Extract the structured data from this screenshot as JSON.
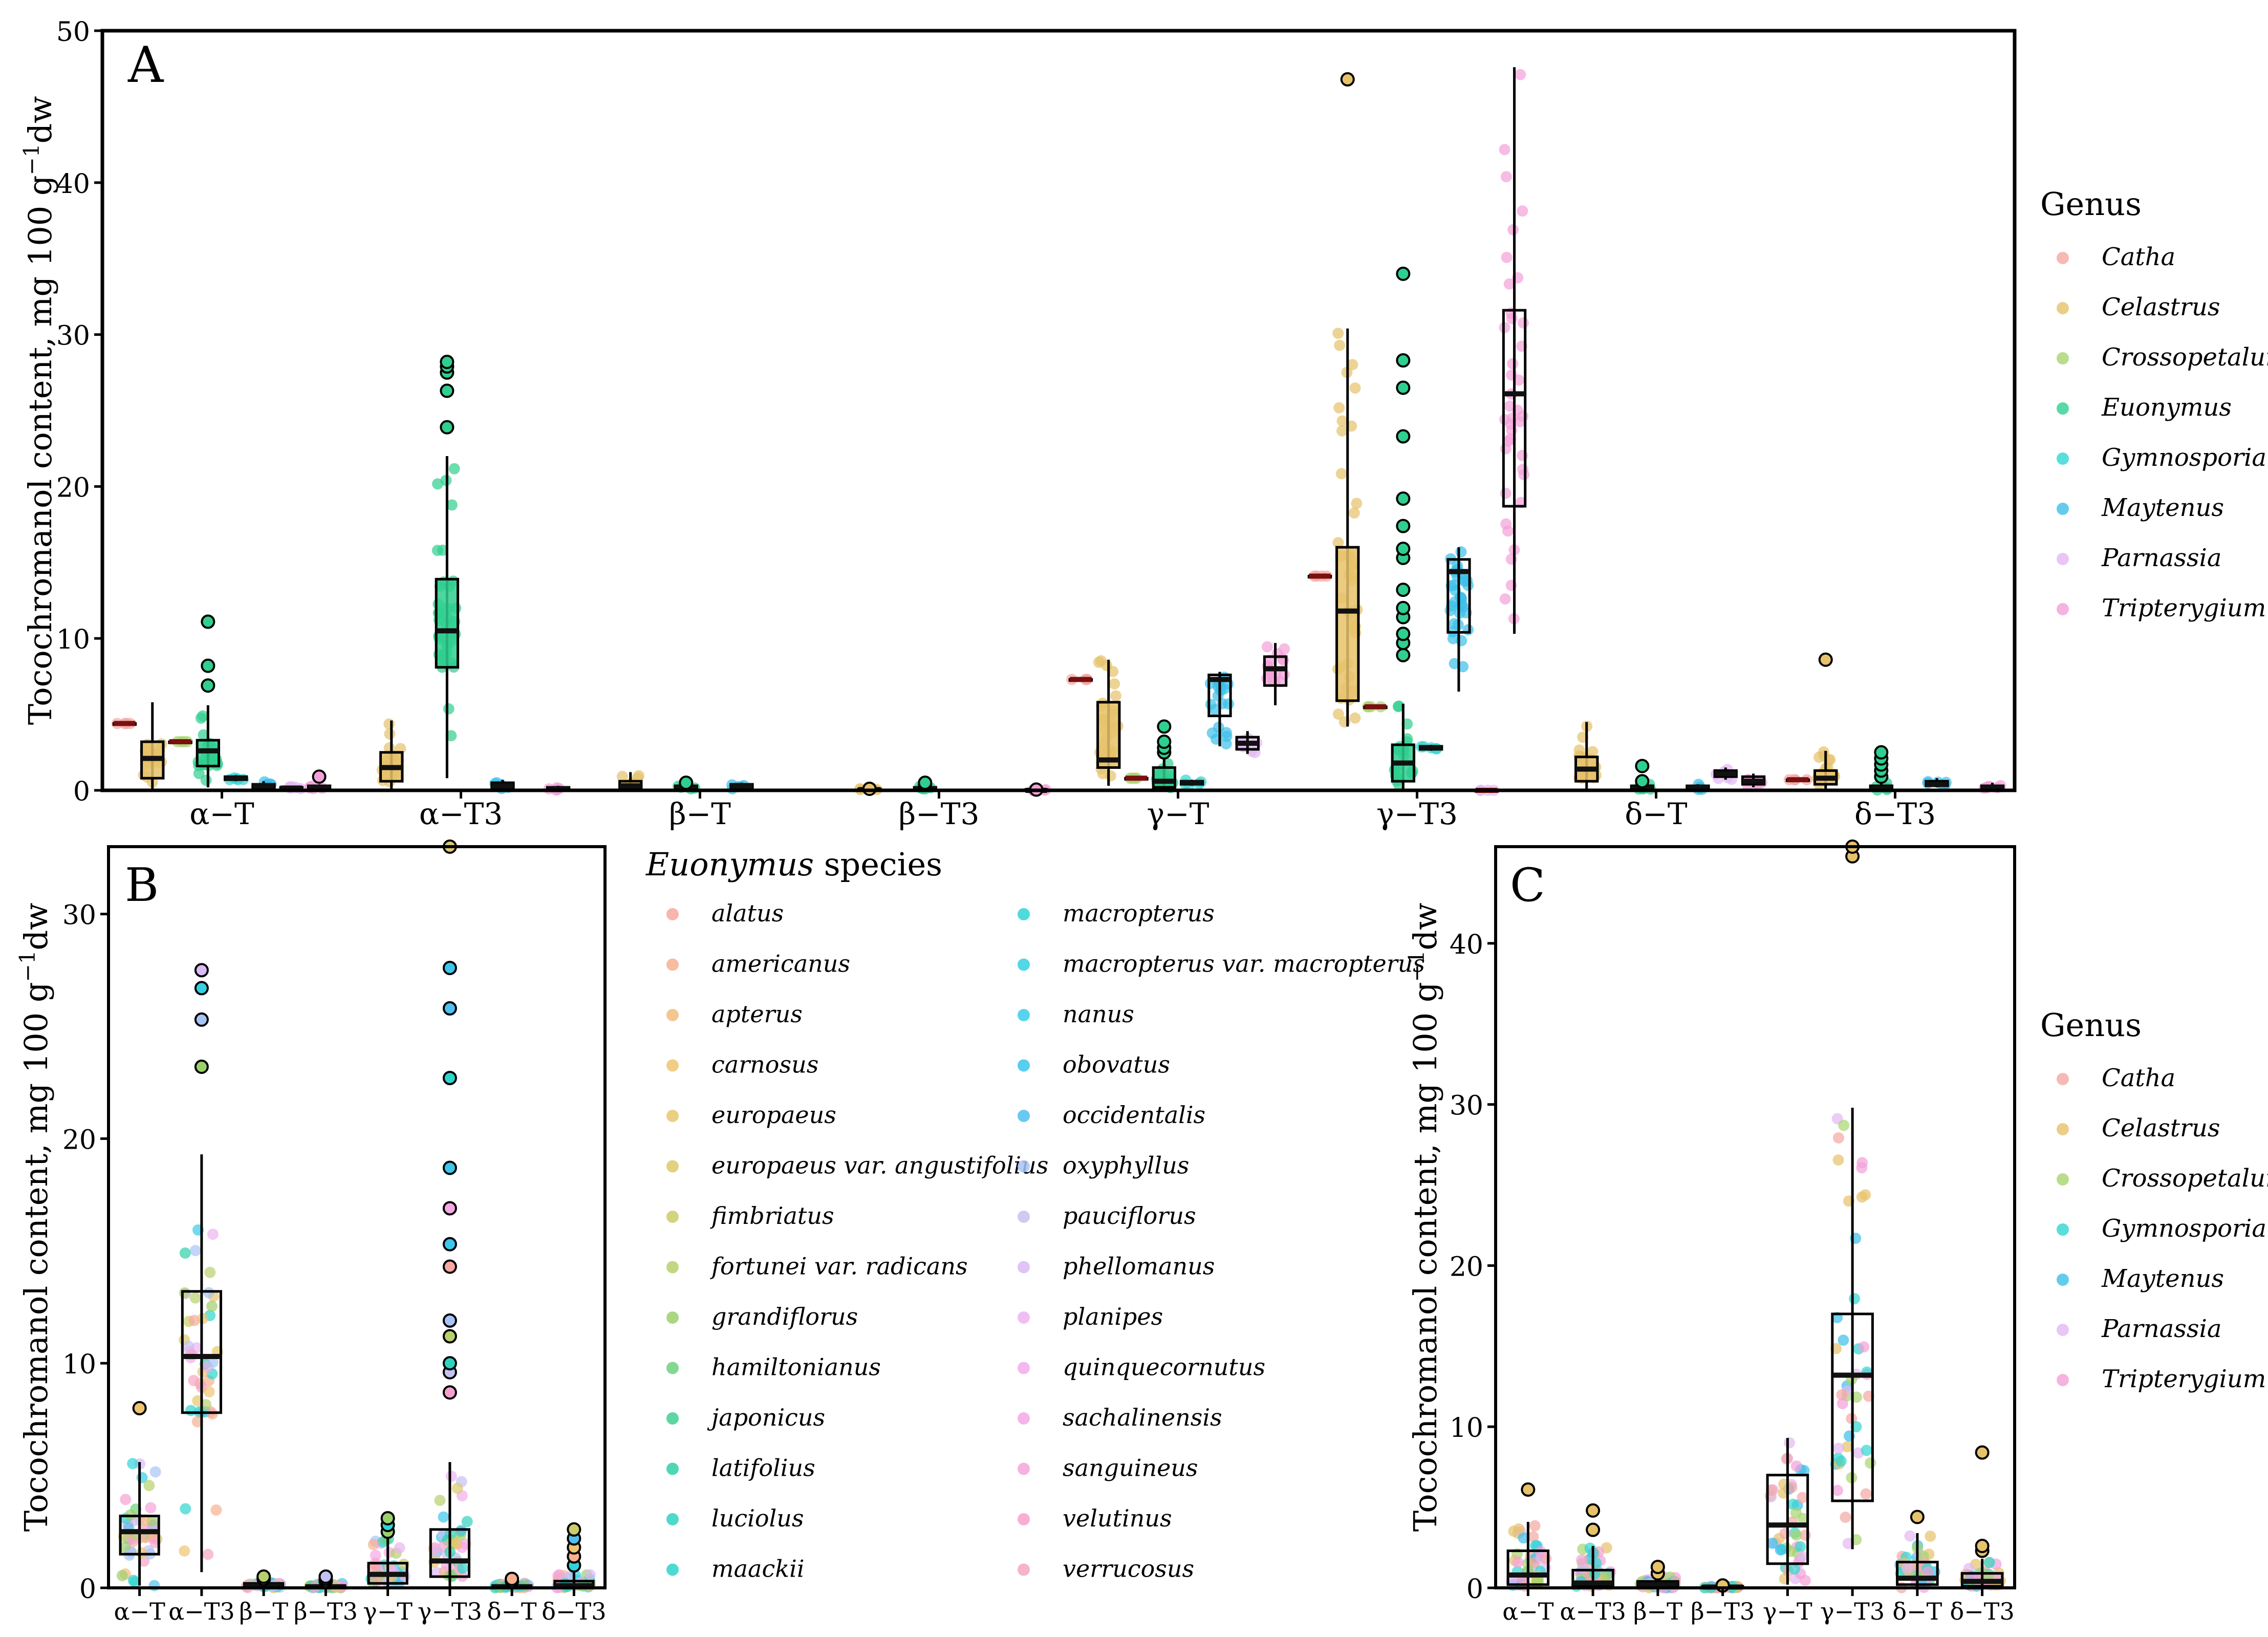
{
  "figure": {
    "panel_labels": [
      "A",
      "B",
      "C"
    ],
    "y_axis_label": "Tocochromanol content, mg 100 g",
    "y_axis_label_sup": "−1",
    "y_axis_label_suffix": "dw"
  },
  "colors": {
    "Catha": "#f4a7a3",
    "Celastrus": "#e6c26a",
    "Crossopetalum": "#a8d46f",
    "Euonymus": "#2fcf8f",
    "Gymnosporia": "#30d6d2",
    "Maytenus": "#3cbfe8",
    "Parnassia": "#e2b8f2",
    "Tripterygium": "#f4a0d8"
  },
  "legend_genus_A": {
    "title": "Genus",
    "items": [
      "Catha",
      "Celastrus",
      "Crossopetalum",
      "Euonymus",
      "Gymnosporia",
      "Maytenus",
      "Parnassia",
      "Tripterygium"
    ]
  },
  "legend_genus_C": {
    "title": "Genus",
    "items": [
      "Catha",
      "Celastrus",
      "Crossopetalum",
      "Gymnosporia",
      "Maytenus",
      "Parnassia",
      "Tripterygium"
    ]
  },
  "legend_species": {
    "title_italic": "Euonymus",
    "title_rest": " species",
    "col1": [
      "alatus",
      "americanus",
      "apterus",
      "carnosus",
      "europaeus",
      "europaeus var. angustifolius",
      "fimbriatus",
      "fortunei var. radicans",
      "grandiflorus",
      "hamiltonianus",
      "japonicus",
      "latifolius",
      "luciolus",
      "maackii"
    ],
    "col2": [
      "macropterus",
      "macropterus var. macropterus",
      "nanus",
      "obovatus",
      "occidentalis",
      "oxyphyllus",
      "pauciflorus",
      "phellomanus",
      "planipes",
      "quinquecornutus",
      "sachalinensis",
      "sanguineus",
      "velutinus",
      "verrucosus"
    ],
    "col1_colors": [
      "#f7a8a0",
      "#f7b090",
      "#f2bc7c",
      "#eec470",
      "#e6c86a",
      "#dcca6c",
      "#cccc6a",
      "#b8d06c",
      "#9cd06c",
      "#6ed07c",
      "#3fcf92",
      "#2fd0a8",
      "#2ed3bf",
      "#2fd4cc"
    ],
    "col2_colors": [
      "#30d4d8",
      "#34d0e2",
      "#38cce8",
      "#3cc6ec",
      "#50c0ee",
      "#a8c4f4",
      "#c4c2f2",
      "#dcbaf4",
      "#ecb4f2",
      "#f2acec",
      "#f4a8e4",
      "#f6a4da",
      "#f6a0d0",
      "#f7a4c4"
    ]
  },
  "chart_data": [
    {
      "panel": "A",
      "type": "box",
      "title": "",
      "xlabel": "",
      "ylabel": "Tocochromanol content, mg 100 g−1dw",
      "ylim": [
        0,
        50
      ],
      "yticks": [
        0,
        10,
        20,
        30,
        40,
        50
      ],
      "categories": [
        "α−T",
        "α−T3",
        "β−T",
        "β−T3",
        "γ−T",
        "γ−T3",
        "δ−T",
        "δ−T3"
      ],
      "groups": [
        {
          "category": "α−T",
          "genus": "Catha",
          "q1": 4.4,
          "median": 4.4,
          "q3": 4.4,
          "wlo": 4.4,
          "whi": 4.4,
          "outliers": []
        },
        {
          "category": "α−T",
          "genus": "Celastrus",
          "q1": 0.8,
          "median": 2.1,
          "q3": 3.2,
          "wlo": 0.1,
          "whi": 5.8,
          "outliers": []
        },
        {
          "category": "α−T",
          "genus": "Crossopetalum",
          "q1": 3.2,
          "median": 3.2,
          "q3": 3.2,
          "wlo": 3.2,
          "whi": 3.2,
          "outliers": []
        },
        {
          "category": "α−T",
          "genus": "Euonymus",
          "q1": 1.6,
          "median": 2.6,
          "q3": 3.3,
          "wlo": 0.2,
          "whi": 5.6,
          "outliers": [
            6.9,
            8.2,
            11.1
          ]
        },
        {
          "category": "α−T",
          "genus": "Gymnosporia",
          "q1": 0.7,
          "median": 0.8,
          "q3": 0.9,
          "wlo": 0.6,
          "whi": 1.0,
          "outliers": []
        },
        {
          "category": "α−T",
          "genus": "Maytenus",
          "q1": 0.2,
          "median": 0.3,
          "q3": 0.4,
          "wlo": 0.1,
          "whi": 0.6,
          "outliers": []
        },
        {
          "category": "α−T",
          "genus": "Parnassia",
          "q1": 0.1,
          "median": 0.15,
          "q3": 0.2,
          "wlo": 0.05,
          "whi": 0.3,
          "outliers": []
        },
        {
          "category": "α−T",
          "genus": "Tripterygium",
          "q1": 0.1,
          "median": 0.2,
          "q3": 0.3,
          "wlo": 0.05,
          "whi": 0.4,
          "outliers": [
            0.9
          ]
        },
        {
          "category": "α−T3",
          "genus": "Celastrus",
          "q1": 0.6,
          "median": 1.5,
          "q3": 2.5,
          "wlo": 0.1,
          "whi": 4.6,
          "outliers": []
        },
        {
          "category": "α−T3",
          "genus": "Euonymus",
          "q1": 8.1,
          "median": 10.5,
          "q3": 13.9,
          "wlo": 0.8,
          "whi": 22.0,
          "outliers": [
            23.9,
            26.3,
            27.5,
            27.9,
            28.2
          ]
        },
        {
          "category": "α−T3",
          "genus": "Maytenus",
          "q1": 0.1,
          "median": 0.3,
          "q3": 0.5,
          "wlo": 0.05,
          "whi": 0.7,
          "outliers": []
        },
        {
          "category": "α−T3",
          "genus": "Tripterygium",
          "q1": 0.05,
          "median": 0.1,
          "q3": 0.2,
          "wlo": 0.0,
          "whi": 0.3,
          "outliers": []
        },
        {
          "category": "β−T",
          "genus": "Celastrus",
          "q1": 0.1,
          "median": 0.3,
          "q3": 0.6,
          "wlo": 0.0,
          "whi": 1.2,
          "outliers": []
        },
        {
          "category": "β−T",
          "genus": "Euonymus",
          "q1": 0.1,
          "median": 0.2,
          "q3": 0.3,
          "wlo": 0.0,
          "whi": 0.5,
          "outliers": [
            0.5
          ]
        },
        {
          "category": "β−T",
          "genus": "Maytenus",
          "q1": 0.2,
          "median": 0.3,
          "q3": 0.4,
          "wlo": 0.1,
          "whi": 0.5,
          "outliers": []
        },
        {
          "category": "β−T3",
          "genus": "Celastrus",
          "q1": 0.0,
          "median": 0.05,
          "q3": 0.1,
          "wlo": 0.0,
          "whi": 0.15,
          "outliers": [
            0.1
          ]
        },
        {
          "category": "β−T3",
          "genus": "Euonymus",
          "q1": 0.05,
          "median": 0.1,
          "q3": 0.2,
          "wlo": 0.0,
          "whi": 0.3,
          "outliers": [
            0.4,
            0.5
          ]
        },
        {
          "category": "β−T3",
          "genus": "Tripterygium",
          "q1": 0.0,
          "median": 0.0,
          "q3": 0.05,
          "wlo": 0.0,
          "whi": 0.05,
          "outliers": [
            0.05
          ]
        },
        {
          "category": "γ−T",
          "genus": "Catha",
          "q1": 7.3,
          "median": 7.3,
          "q3": 7.3,
          "wlo": 7.3,
          "whi": 7.3,
          "outliers": []
        },
        {
          "category": "γ−T",
          "genus": "Celastrus",
          "q1": 1.5,
          "median": 2.0,
          "q3": 5.8,
          "wlo": 0.3,
          "whi": 8.6,
          "outliers": []
        },
        {
          "category": "γ−T",
          "genus": "Crossopetalum",
          "q1": 0.8,
          "median": 0.8,
          "q3": 0.8,
          "wlo": 0.8,
          "whi": 0.8,
          "outliers": []
        },
        {
          "category": "γ−T",
          "genus": "Euonymus",
          "q1": 0.2,
          "median": 0.6,
          "q3": 1.5,
          "wlo": 0.0,
          "whi": 2.2,
          "outliers": [
            2.5,
            2.8,
            3.2,
            4.2
          ]
        },
        {
          "category": "γ−T",
          "genus": "Gymnosporia",
          "q1": 0.4,
          "median": 0.5,
          "q3": 0.6,
          "wlo": 0.3,
          "whi": 0.7,
          "outliers": []
        },
        {
          "category": "γ−T",
          "genus": "Maytenus",
          "q1": 4.9,
          "median": 7.3,
          "q3": 7.6,
          "wlo": 2.9,
          "whi": 7.8,
          "outliers": []
        },
        {
          "category": "γ−T",
          "genus": "Parnassia",
          "q1": 2.7,
          "median": 3.1,
          "q3": 3.5,
          "wlo": 2.4,
          "whi": 3.9,
          "outliers": []
        },
        {
          "category": "γ−T",
          "genus": "Tripterygium",
          "q1": 6.9,
          "median": 8.0,
          "q3": 8.8,
          "wlo": 5.6,
          "whi": 9.7,
          "outliers": []
        },
        {
          "category": "γ−T3",
          "genus": "Catha",
          "q1": 14.1,
          "median": 14.1,
          "q3": 14.1,
          "wlo": 14.1,
          "whi": 14.1,
          "outliers": []
        },
        {
          "category": "γ−T3",
          "genus": "Celastrus",
          "q1": 5.9,
          "median": 11.8,
          "q3": 16.0,
          "wlo": 4.2,
          "whi": 30.4,
          "outliers": [
            46.8
          ]
        },
        {
          "category": "γ−T3",
          "genus": "Crossopetalum",
          "q1": 5.5,
          "median": 5.5,
          "q3": 5.5,
          "wlo": 5.5,
          "whi": 5.5,
          "outliers": []
        },
        {
          "category": "γ−T3",
          "genus": "Euonymus",
          "q1": 0.6,
          "median": 1.8,
          "q3": 3.0,
          "wlo": 0.0,
          "whi": 5.7,
          "outliers": [
            8.9,
            9.7,
            10.3,
            11.4,
            12.0,
            13.2,
            15.3,
            15.9,
            17.4,
            19.2,
            23.3,
            26.5,
            28.3,
            34.0
          ]
        },
        {
          "category": "γ−T3",
          "genus": "Gymnosporia",
          "q1": 2.7,
          "median": 2.8,
          "q3": 2.9,
          "wlo": 2.6,
          "whi": 3.0,
          "outliers": []
        },
        {
          "category": "γ−T3",
          "genus": "Maytenus",
          "q1": 10.4,
          "median": 14.4,
          "q3": 15.2,
          "wlo": 6.5,
          "whi": 16.0,
          "outliers": []
        },
        {
          "category": "γ−T3",
          "genus": "Parnassia",
          "q1": 0.0,
          "median": 0.0,
          "q3": 0.0,
          "wlo": 0.0,
          "whi": 0.0,
          "outliers": []
        },
        {
          "category": "γ−T3",
          "genus": "Tripterygium",
          "q1": 18.7,
          "median": 26.1,
          "q3": 31.6,
          "wlo": 10.3,
          "whi": 47.6,
          "outliers": []
        },
        {
          "category": "δ−T",
          "genus": "Celastrus",
          "q1": 0.6,
          "median": 1.4,
          "q3": 2.2,
          "wlo": 0.1,
          "whi": 4.5,
          "outliers": []
        },
        {
          "category": "δ−T",
          "genus": "Euonymus",
          "q1": 0.05,
          "median": 0.1,
          "q3": 0.3,
          "wlo": 0.0,
          "whi": 0.5,
          "outliers": [
            0.6,
            1.6
          ]
        },
        {
          "category": "δ−T",
          "genus": "Maytenus",
          "q1": 0.1,
          "median": 0.2,
          "q3": 0.3,
          "wlo": 0.05,
          "whi": 0.4,
          "outliers": []
        },
        {
          "category": "δ−T",
          "genus": "Parnassia",
          "q1": 0.9,
          "median": 1.1,
          "q3": 1.3,
          "wlo": 0.7,
          "whi": 1.5,
          "outliers": []
        },
        {
          "category": "δ−T",
          "genus": "Tripterygium",
          "q1": 0.4,
          "median": 0.6,
          "q3": 0.9,
          "wlo": 0.2,
          "whi": 1.1,
          "outliers": []
        },
        {
          "category": "δ−T3",
          "genus": "Catha",
          "q1": 0.7,
          "median": 0.7,
          "q3": 0.7,
          "wlo": 0.7,
          "whi": 0.7,
          "outliers": []
        },
        {
          "category": "δ−T3",
          "genus": "Celastrus",
          "q1": 0.4,
          "median": 0.8,
          "q3": 1.3,
          "wlo": 0.1,
          "whi": 2.6,
          "outliers": [
            8.6
          ]
        },
        {
          "category": "δ−T3",
          "genus": "Euonymus",
          "q1": 0.0,
          "median": 0.1,
          "q3": 0.3,
          "wlo": 0.0,
          "whi": 0.6,
          "outliers": [
            0.9,
            1.3,
            1.7,
            2.1,
            2.5
          ]
        },
        {
          "category": "δ−T3",
          "genus": "Maytenus",
          "q1": 0.3,
          "median": 0.4,
          "q3": 0.6,
          "wlo": 0.2,
          "whi": 0.8,
          "outliers": []
        },
        {
          "category": "δ−T3",
          "genus": "Tripterygium",
          "q1": 0.1,
          "median": 0.2,
          "q3": 0.3,
          "wlo": 0.0,
          "whi": 0.5,
          "outliers": []
        }
      ]
    },
    {
      "panel": "B",
      "type": "box",
      "title": "",
      "xlabel": "",
      "ylabel": "Tocochromanol content, mg 100 g−1dw",
      "ylim": [
        0,
        33
      ],
      "yticks": [
        0,
        10,
        20,
        30
      ],
      "categories": [
        "α−T",
        "α−T3",
        "β−T",
        "β−T3",
        "γ−T",
        "γ−T3",
        "δ−T",
        "δ−T3"
      ],
      "groups": [
        {
          "category": "α−T",
          "q1": 1.5,
          "median": 2.5,
          "q3": 3.2,
          "wlo": 0.1,
          "whi": 5.6,
          "outliers": [
            8.0
          ]
        },
        {
          "category": "α−T3",
          "q1": 7.8,
          "median": 10.3,
          "q3": 13.2,
          "wlo": 0.7,
          "whi": 19.3,
          "outliers": [
            23.2,
            25.3,
            26.7,
            27.5
          ]
        },
        {
          "category": "β−T",
          "q1": 0.05,
          "median": 0.1,
          "q3": 0.2,
          "wlo": 0.0,
          "whi": 0.3,
          "outliers": [
            0.4,
            0.5
          ]
        },
        {
          "category": "β−T3",
          "q1": 0.0,
          "median": 0.05,
          "q3": 0.1,
          "wlo": 0.0,
          "whi": 0.2,
          "outliers": [
            0.3,
            0.4,
            0.5
          ]
        },
        {
          "category": "γ−T",
          "q1": 0.2,
          "median": 0.6,
          "q3": 1.1,
          "wlo": 0.0,
          "whi": 2.2,
          "outliers": [
            2.5,
            2.8,
            3.1
          ]
        },
        {
          "category": "γ−T3",
          "q1": 0.5,
          "median": 1.2,
          "q3": 2.6,
          "wlo": 0.0,
          "whi": 5.6,
          "outliers": [
            8.7,
            9.6,
            10.0,
            11.2,
            11.9,
            14.3,
            15.3,
            16.9,
            18.7,
            22.7,
            25.8,
            27.6,
            33.0
          ]
        },
        {
          "category": "δ−T",
          "q1": 0.0,
          "median": 0.05,
          "q3": 0.1,
          "wlo": 0.0,
          "whi": 0.2,
          "outliers": [
            0.3,
            0.4
          ]
        },
        {
          "category": "δ−T3",
          "q1": 0.0,
          "median": 0.1,
          "q3": 0.3,
          "wlo": 0.0,
          "whi": 0.7,
          "outliers": [
            1.0,
            1.4,
            1.8,
            2.2,
            2.6
          ]
        }
      ]
    },
    {
      "panel": "C",
      "type": "box",
      "title": "",
      "xlabel": "",
      "ylabel": "Tocochromanol content, mg 100 g−1dw",
      "ylim": [
        0,
        46
      ],
      "yticks": [
        0,
        10,
        20,
        30,
        40
      ],
      "categories": [
        "α−T",
        "α−T3",
        "β−T",
        "β−T3",
        "γ−T",
        "γ−T3",
        "δ−T",
        "δ−T3"
      ],
      "groups": [
        {
          "category": "α−T",
          "q1": 0.2,
          "median": 0.8,
          "q3": 2.3,
          "wlo": 0.0,
          "whi": 4.1,
          "outliers": [
            6.1
          ]
        },
        {
          "category": "α−T3",
          "q1": 0.1,
          "median": 0.3,
          "q3": 1.1,
          "wlo": 0.0,
          "whi": 2.6,
          "outliers": [
            3.6,
            4.8
          ]
        },
        {
          "category": "β−T",
          "q1": 0.0,
          "median": 0.2,
          "q3": 0.4,
          "wlo": 0.0,
          "whi": 0.7,
          "outliers": [
            0.9,
            1.3
          ]
        },
        {
          "category": "β−T3",
          "q1": 0.0,
          "median": 0.05,
          "q3": 0.1,
          "wlo": 0.0,
          "whi": 0.1,
          "outliers": [
            0.15
          ]
        },
        {
          "category": "γ−T",
          "q1": 1.5,
          "median": 3.9,
          "q3": 7.0,
          "wlo": 0.2,
          "whi": 9.3,
          "outliers": []
        },
        {
          "category": "γ−T3",
          "q1": 5.4,
          "median": 13.2,
          "q3": 17.0,
          "wlo": 2.4,
          "whi": 29.8,
          "outliers": [
            45.4,
            46.0
          ]
        },
        {
          "category": "δ−T",
          "q1": 0.2,
          "median": 0.6,
          "q3": 1.6,
          "wlo": 0.0,
          "whi": 3.4,
          "outliers": [
            4.4
          ]
        },
        {
          "category": "δ−T3",
          "q1": 0.1,
          "median": 0.4,
          "q3": 0.9,
          "wlo": 0.0,
          "whi": 1.8,
          "outliers": [
            2.3,
            2.6,
            8.4
          ]
        }
      ]
    }
  ]
}
